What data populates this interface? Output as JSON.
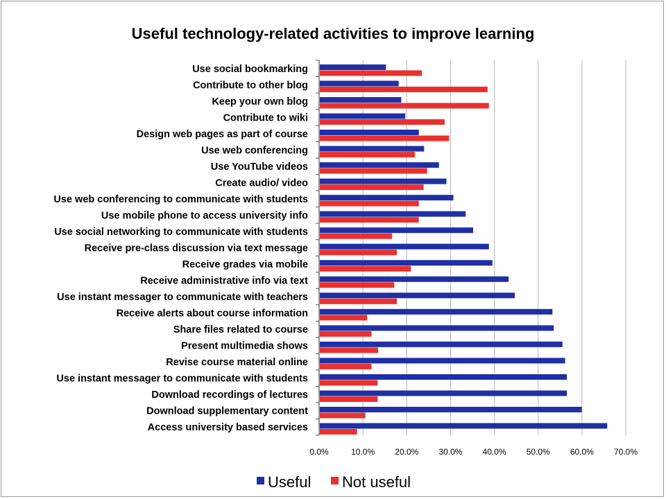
{
  "chart_data": {
    "type": "bar",
    "orientation": "horizontal",
    "title": "Useful technology-related activities to improve learning",
    "xlabel": "",
    "ylabel": "",
    "xlim": [
      0,
      70
    ],
    "x_ticks": [
      "0.0%",
      "10.0%",
      "20.0%",
      "30.0%",
      "40.0%",
      "50.0%",
      "60.0%",
      "70.0%"
    ],
    "grid": true,
    "legend_position": "bottom",
    "categories": [
      "Use social bookmarking",
      "Contribute to other blog",
      "Keep your own blog",
      "Contribute to wiki",
      "Design web pages as part of course",
      "Use web conferencing",
      "Use YouTube videos",
      "Create audio/ video",
      "Use web conferencing to communicate with students",
      "Use mobile phone to access university info",
      "Use social networking to communicate with students",
      "Receive pre-class discussion via text message",
      "Receive grades via mobile",
      "Receive administrative info via text",
      "Use instant messager to communicate with teachers",
      "Receive alerts about course information",
      "Share files related to course",
      "Present multimedia shows",
      "Revise course material online",
      "Use instant messager to communicate with students",
      "Download recordings of lectures",
      "Download supplementary content",
      "Access university based services"
    ],
    "series": [
      {
        "name": "Useful",
        "color": "#1f2fa5",
        "values": [
          15.1,
          18.0,
          18.6,
          19.5,
          22.6,
          23.8,
          27.2,
          28.9,
          30.5,
          33.3,
          35.0,
          38.6,
          39.4,
          43.1,
          44.5,
          53.1,
          53.4,
          55.4,
          56.0,
          56.4,
          56.4,
          59.8,
          65.6
        ]
      },
      {
        "name": "Not useful",
        "color": "#e8312f",
        "values": [
          23.3,
          38.3,
          38.6,
          28.5,
          29.5,
          21.7,
          24.5,
          23.7,
          22.6,
          22.6,
          16.5,
          17.6,
          20.8,
          17.0,
          17.6,
          10.8,
          11.8,
          13.3,
          11.8,
          13.2,
          13.2,
          10.4,
          8.5
        ]
      }
    ]
  }
}
